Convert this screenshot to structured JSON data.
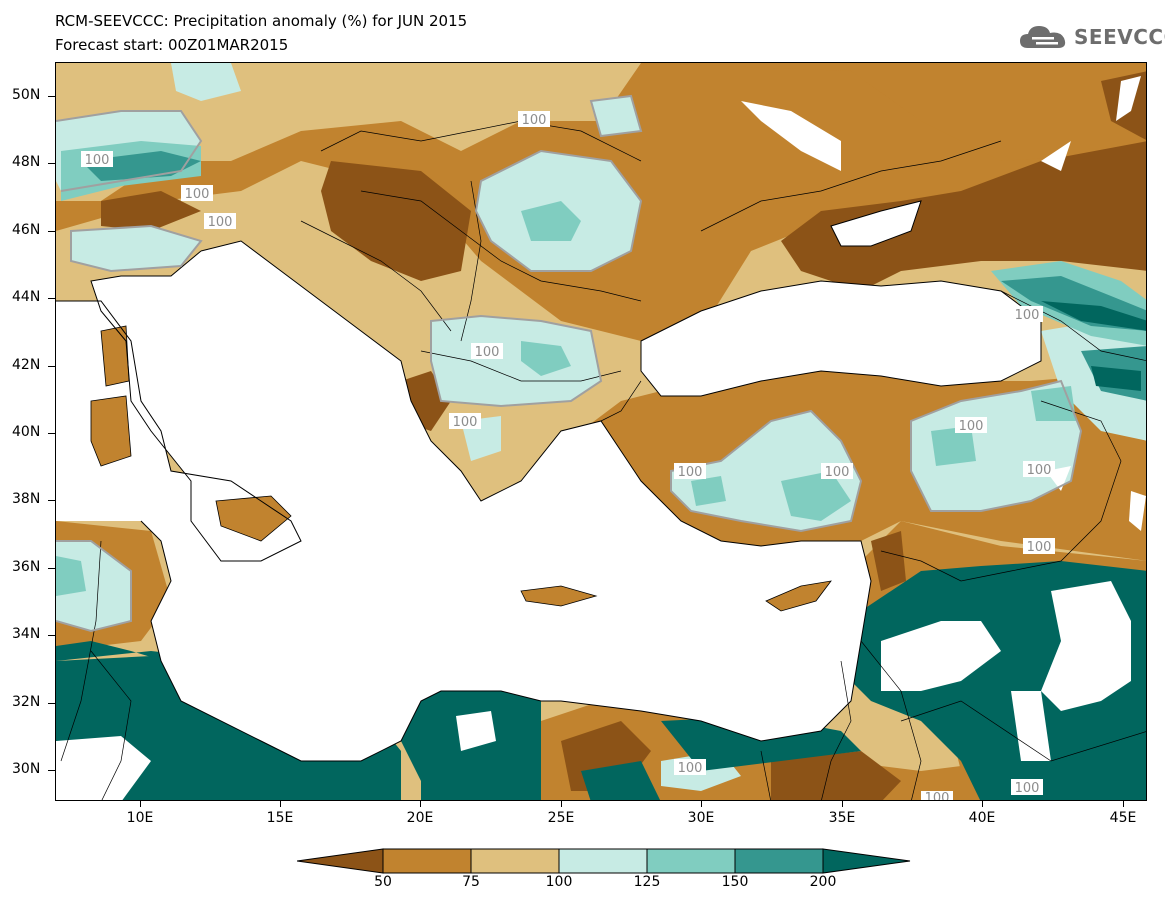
{
  "title": {
    "line1": "RCM-SEEVCCC: Precipitation anomaly (%) for JUN 2015",
    "line2": "Forecast start: 00Z01MAR2015"
  },
  "logo": {
    "text": "SEEVCCC",
    "icon": "cloud-icon"
  },
  "map": {
    "lat_labels": [
      "50N",
      "48N",
      "46N",
      "44N",
      "42N",
      "40N",
      "38N",
      "36N",
      "34N",
      "32N",
      "30N"
    ],
    "lon_labels": [
      "10E",
      "15E",
      "20E",
      "25E",
      "30E",
      "35E",
      "40E",
      "45E"
    ],
    "contour_label": "100"
  },
  "colorbar": {
    "labels": [
      "50",
      "75",
      "100",
      "125",
      "150",
      "200"
    ],
    "colors": [
      "#8c5317",
      "#c1832f",
      "#dfc07e",
      "#c7ebe4",
      "#80cdc0",
      "#35978f",
      "#01665e"
    ]
  },
  "legend_classes": [
    "<50",
    "50-75",
    "75-100",
    "100-125",
    "125-150",
    "150-200",
    ">200"
  ]
}
